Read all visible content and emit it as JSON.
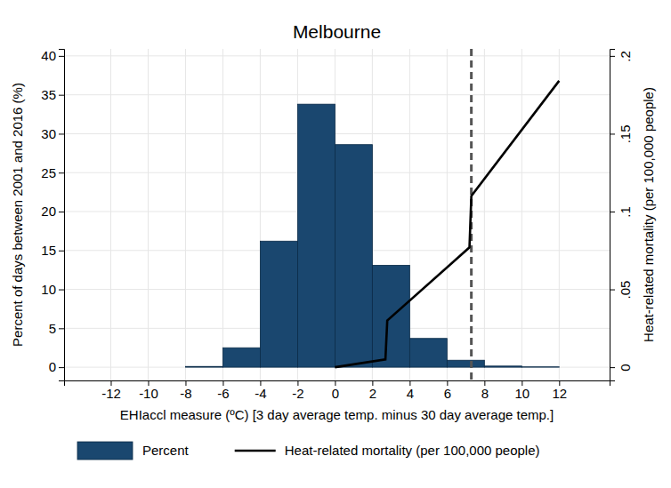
{
  "chart_data": {
    "type": "histogram",
    "title": "Melbourne",
    "x_label": "EHIaccl measure (ºC) [3 day average temp. minus 30 day average temp.]",
    "y_label": "Percent of days between 2001 and 2016 (%)",
    "y2_label": "Heat-related mortality (per 100,000 people)",
    "bins": [
      -8,
      -6,
      -4,
      -2,
      0,
      2,
      4,
      6,
      8,
      10,
      12
    ],
    "series": [
      {
        "name": "Percent",
        "type": "bar",
        "color": "#1a476f",
        "values": [
          0.1,
          2.5,
          16.2,
          33.8,
          28.6,
          13.1,
          3.7,
          0.9,
          0.15,
          0.05
        ]
      },
      {
        "name": "Heat-related mortality (per 100,000 people)",
        "type": "line",
        "axis": "y2",
        "color": "#000000",
        "line_style": "solid",
        "x": [
          0,
          2.7,
          2.8,
          7.2,
          7.3,
          12
        ],
        "values": [
          0,
          0.005,
          0.03,
          0.077,
          0.11,
          0.184
        ]
      }
    ],
    "reference_lines": [
      {
        "x": 7.3,
        "line_style": "dashed",
        "color": "#555555"
      }
    ],
    "xlim": [
      -14.5,
      14.7
    ],
    "xticks": [
      -12,
      -10,
      -8,
      -6,
      -4,
      -2,
      0,
      2,
      4,
      6,
      8,
      10,
      12
    ],
    "ylim": [
      -1.7,
      40.9
    ],
    "yticks": [
      0,
      5,
      10,
      15,
      20,
      25,
      30,
      35,
      40
    ],
    "y2lim": [
      -0.0085,
      0.2045
    ],
    "y2ticks": [
      0,
      {
        "value": 0.05,
        "label": ".05"
      },
      {
        "value": 0.1,
        "label": ".1"
      },
      {
        "value": 0.15,
        "label": ".15"
      },
      {
        "value": 0.2,
        "label": ".2"
      }
    ],
    "grid": true,
    "legend": "bottom"
  }
}
